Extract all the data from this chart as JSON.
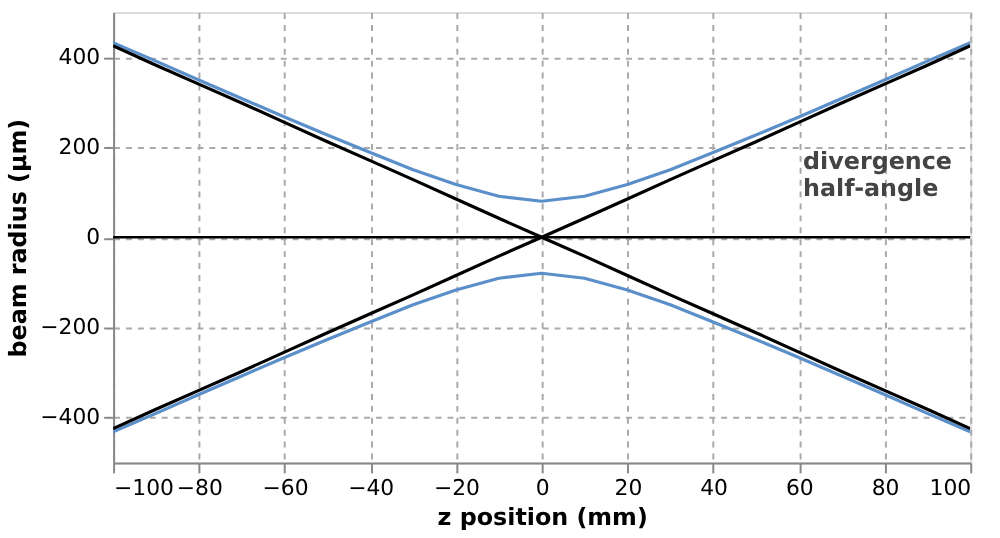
{
  "chart_data": {
    "type": "line",
    "xlabel": "z position (mm)",
    "ylabel": "beam radius (µm)",
    "x": [
      -100,
      -90,
      -80,
      -70,
      -60,
      -50,
      -40,
      -30,
      -20,
      -10,
      0,
      10,
      20,
      30,
      40,
      50,
      60,
      70,
      80,
      90,
      100
    ],
    "series": [
      {
        "color": "#5b8fc9",
        "values": [
          432,
          391,
          349,
          308,
          267,
          227,
          188,
          150,
          117,
          91,
          80,
          91,
          117,
          150,
          188,
          227,
          267,
          308,
          349,
          391,
          432
        ]
      },
      {
        "color": "#5b8fc9",
        "values": [
          -432,
          -391,
          -349,
          -308,
          -267,
          -227,
          -188,
          -150,
          -117,
          -91,
          -80,
          -91,
          -117,
          -150,
          -188,
          -227,
          -267,
          -308,
          -349,
          -391,
          -432
        ]
      },
      {
        "color": "#000000",
        "values": [
          425,
          382,
          340,
          298,
          255,
          212,
          170,
          128,
          85,
          42,
          0,
          -42,
          -85,
          -128,
          -170,
          -212,
          -255,
          -298,
          -340,
          -382,
          -425
        ]
      },
      {
        "color": "#000000",
        "values": [
          -425,
          -382,
          -340,
          -298,
          -255,
          -212,
          -170,
          -128,
          -85,
          -42,
          0,
          42,
          85,
          128,
          170,
          212,
          255,
          298,
          340,
          382,
          425
        ]
      }
    ],
    "ref_lines": [
      {
        "axis": "y",
        "value": 0,
        "color": "#000000"
      }
    ],
    "annotations": [
      "divergence half-angle"
    ],
    "xlim": [
      -100,
      100
    ],
    "ylim": [
      -500,
      500
    ],
    "xticks": [
      -100,
      -80,
      -60,
      -40,
      -20,
      0,
      20,
      40,
      60,
      80,
      100
    ],
    "yticks": [
      -400,
      -200,
      0,
      200,
      400
    ],
    "grid": true,
    "marker": "none",
    "line_style": "solid"
  }
}
